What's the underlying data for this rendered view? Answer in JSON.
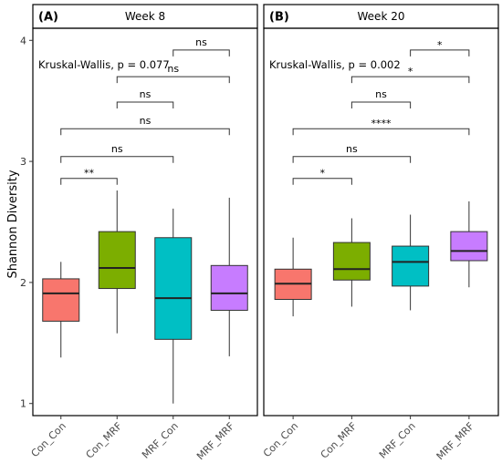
{
  "ylabel": "Shannon Diversity",
  "yticks": [
    1,
    2,
    3,
    4
  ],
  "ylim": [
    0.9,
    4.1
  ],
  "groups": [
    "Con_Con",
    "Con_MRF",
    "MRF_Con",
    "MRF_MRF"
  ],
  "colors": {
    "Con_Con": "#f8766d",
    "Con_MRF": "#7cae00",
    "MRF_Con": "#00bfc4",
    "MRF_MRF": "#c77cff",
    "line": "#333333",
    "frame": "#000000"
  },
  "chart_data": [
    {
      "type": "box",
      "panel_label": "(A)",
      "title": "Week 8",
      "ylabel": "Shannon Diversity",
      "ylim": [
        0.9,
        4.1
      ],
      "annotation": "Kruskal-Wallis, p = 0.077",
      "boxes": [
        {
          "group": "Con_Con",
          "lower_whisker": 1.38,
          "q1": 1.68,
          "median": 1.91,
          "q3": 2.03,
          "upper_whisker": 2.17
        },
        {
          "group": "Con_MRF",
          "lower_whisker": 1.58,
          "q1": 1.95,
          "median": 2.12,
          "q3": 2.42,
          "upper_whisker": 2.76
        },
        {
          "group": "MRF_Con",
          "lower_whisker": 1.0,
          "q1": 1.53,
          "median": 1.87,
          "q3": 2.37,
          "upper_whisker": 2.61
        },
        {
          "group": "MRF_MRF",
          "lower_whisker": 1.39,
          "q1": 1.77,
          "median": 1.91,
          "q3": 2.14,
          "upper_whisker": 2.7
        }
      ],
      "comparisons": [
        {
          "from": "Con_Con",
          "to": "Con_MRF",
          "y": 2.86,
          "label": "**"
        },
        {
          "from": "Con_Con",
          "to": "MRF_Con",
          "y": 3.04,
          "label": "ns"
        },
        {
          "from": "Con_Con",
          "to": "MRF_MRF",
          "y": 3.27,
          "label": "ns"
        },
        {
          "from": "Con_MRF",
          "to": "MRF_Con",
          "y": 3.49,
          "label": "ns"
        },
        {
          "from": "Con_MRF",
          "to": "MRF_MRF",
          "y": 3.7,
          "label": "ns"
        },
        {
          "from": "MRF_Con",
          "to": "MRF_MRF",
          "y": 3.92,
          "label": "ns"
        }
      ]
    },
    {
      "type": "box",
      "panel_label": "(B)",
      "title": "Week 20",
      "ylim": [
        0.9,
        4.1
      ],
      "annotation": "Kruskal-Wallis, p = 0.002",
      "boxes": [
        {
          "group": "Con_Con",
          "lower_whisker": 1.72,
          "q1": 1.86,
          "median": 1.99,
          "q3": 2.11,
          "upper_whisker": 2.37
        },
        {
          "group": "Con_MRF",
          "lower_whisker": 1.8,
          "q1": 2.02,
          "median": 2.11,
          "q3": 2.33,
          "upper_whisker": 2.53
        },
        {
          "group": "MRF_Con",
          "lower_whisker": 1.77,
          "q1": 1.97,
          "median": 2.17,
          "q3": 2.3,
          "upper_whisker": 2.56
        },
        {
          "group": "MRF_MRF",
          "lower_whisker": 1.96,
          "q1": 2.18,
          "median": 2.26,
          "q3": 2.42,
          "upper_whisker": 2.67
        }
      ],
      "comparisons": [
        {
          "from": "Con_Con",
          "to": "Con_MRF",
          "y": 2.86,
          "label": "*"
        },
        {
          "from": "Con_Con",
          "to": "MRF_Con",
          "y": 3.04,
          "label": "ns"
        },
        {
          "from": "Con_Con",
          "to": "MRF_MRF",
          "y": 3.27,
          "label": "****"
        },
        {
          "from": "Con_MRF",
          "to": "MRF_Con",
          "y": 3.49,
          "label": "ns"
        },
        {
          "from": "Con_MRF",
          "to": "MRF_MRF",
          "y": 3.7,
          "label": "*"
        },
        {
          "from": "MRF_Con",
          "to": "MRF_MRF",
          "y": 3.92,
          "label": "*"
        }
      ]
    }
  ]
}
